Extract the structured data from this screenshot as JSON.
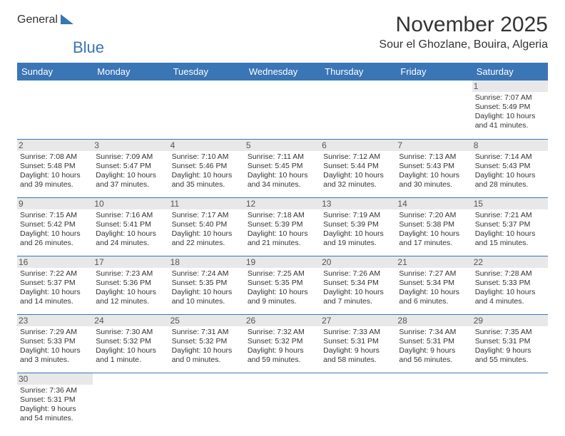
{
  "logo": {
    "general": "General",
    "blue": "Blue"
  },
  "title": "November 2025",
  "location": "Sour el Ghozlane, Bouira, Algeria",
  "colors": {
    "accent": "#3a75b5",
    "day_bg": "#e8e8e8",
    "text": "#333333"
  },
  "days_of_week": [
    "Sunday",
    "Monday",
    "Tuesday",
    "Wednesday",
    "Thursday",
    "Friday",
    "Saturday"
  ],
  "weeks": [
    [
      null,
      null,
      null,
      null,
      null,
      null,
      {
        "n": "1",
        "sr": "7:07 AM",
        "ss": "5:49 PM",
        "dl": "10 hours and 41 minutes."
      }
    ],
    [
      {
        "n": "2",
        "sr": "7:08 AM",
        "ss": "5:48 PM",
        "dl": "10 hours and 39 minutes."
      },
      {
        "n": "3",
        "sr": "7:09 AM",
        "ss": "5:47 PM",
        "dl": "10 hours and 37 minutes."
      },
      {
        "n": "4",
        "sr": "7:10 AM",
        "ss": "5:46 PM",
        "dl": "10 hours and 35 minutes."
      },
      {
        "n": "5",
        "sr": "7:11 AM",
        "ss": "5:45 PM",
        "dl": "10 hours and 34 minutes."
      },
      {
        "n": "6",
        "sr": "7:12 AM",
        "ss": "5:44 PM",
        "dl": "10 hours and 32 minutes."
      },
      {
        "n": "7",
        "sr": "7:13 AM",
        "ss": "5:43 PM",
        "dl": "10 hours and 30 minutes."
      },
      {
        "n": "8",
        "sr": "7:14 AM",
        "ss": "5:43 PM",
        "dl": "10 hours and 28 minutes."
      }
    ],
    [
      {
        "n": "9",
        "sr": "7:15 AM",
        "ss": "5:42 PM",
        "dl": "10 hours and 26 minutes."
      },
      {
        "n": "10",
        "sr": "7:16 AM",
        "ss": "5:41 PM",
        "dl": "10 hours and 24 minutes."
      },
      {
        "n": "11",
        "sr": "7:17 AM",
        "ss": "5:40 PM",
        "dl": "10 hours and 22 minutes."
      },
      {
        "n": "12",
        "sr": "7:18 AM",
        "ss": "5:39 PM",
        "dl": "10 hours and 21 minutes."
      },
      {
        "n": "13",
        "sr": "7:19 AM",
        "ss": "5:39 PM",
        "dl": "10 hours and 19 minutes."
      },
      {
        "n": "14",
        "sr": "7:20 AM",
        "ss": "5:38 PM",
        "dl": "10 hours and 17 minutes."
      },
      {
        "n": "15",
        "sr": "7:21 AM",
        "ss": "5:37 PM",
        "dl": "10 hours and 15 minutes."
      }
    ],
    [
      {
        "n": "16",
        "sr": "7:22 AM",
        "ss": "5:37 PM",
        "dl": "10 hours and 14 minutes."
      },
      {
        "n": "17",
        "sr": "7:23 AM",
        "ss": "5:36 PM",
        "dl": "10 hours and 12 minutes."
      },
      {
        "n": "18",
        "sr": "7:24 AM",
        "ss": "5:35 PM",
        "dl": "10 hours and 10 minutes."
      },
      {
        "n": "19",
        "sr": "7:25 AM",
        "ss": "5:35 PM",
        "dl": "10 hours and 9 minutes."
      },
      {
        "n": "20",
        "sr": "7:26 AM",
        "ss": "5:34 PM",
        "dl": "10 hours and 7 minutes."
      },
      {
        "n": "21",
        "sr": "7:27 AM",
        "ss": "5:34 PM",
        "dl": "10 hours and 6 minutes."
      },
      {
        "n": "22",
        "sr": "7:28 AM",
        "ss": "5:33 PM",
        "dl": "10 hours and 4 minutes."
      }
    ],
    [
      {
        "n": "23",
        "sr": "7:29 AM",
        "ss": "5:33 PM",
        "dl": "10 hours and 3 minutes."
      },
      {
        "n": "24",
        "sr": "7:30 AM",
        "ss": "5:32 PM",
        "dl": "10 hours and 1 minute."
      },
      {
        "n": "25",
        "sr": "7:31 AM",
        "ss": "5:32 PM",
        "dl": "10 hours and 0 minutes."
      },
      {
        "n": "26",
        "sr": "7:32 AM",
        "ss": "5:32 PM",
        "dl": "9 hours and 59 minutes."
      },
      {
        "n": "27",
        "sr": "7:33 AM",
        "ss": "5:31 PM",
        "dl": "9 hours and 58 minutes."
      },
      {
        "n": "28",
        "sr": "7:34 AM",
        "ss": "5:31 PM",
        "dl": "9 hours and 56 minutes."
      },
      {
        "n": "29",
        "sr": "7:35 AM",
        "ss": "5:31 PM",
        "dl": "9 hours and 55 minutes."
      }
    ],
    [
      {
        "n": "30",
        "sr": "7:36 AM",
        "ss": "5:31 PM",
        "dl": "9 hours and 54 minutes."
      },
      null,
      null,
      null,
      null,
      null,
      null
    ]
  ],
  "labels": {
    "sunrise": "Sunrise: ",
    "sunset": "Sunset: ",
    "daylight": "Daylight: "
  }
}
